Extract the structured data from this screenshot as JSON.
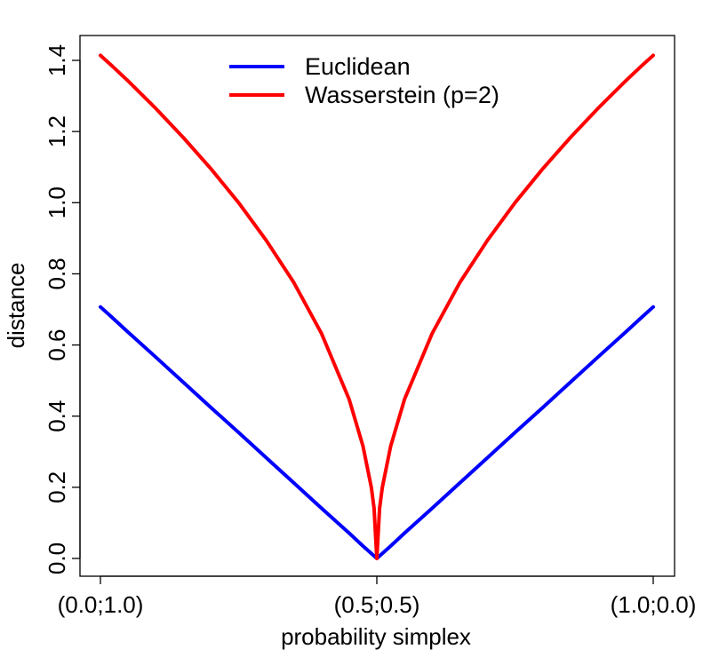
{
  "chart_data": {
    "type": "line",
    "title": "",
    "xlabel": "probability simplex",
    "ylabel": "distance",
    "xlim": [
      0,
      1
    ],
    "ylim": [
      0,
      1.4
    ],
    "x_ticks": [
      {
        "value": 0.0,
        "label": "(0.0;1.0)"
      },
      {
        "value": 0.5,
        "label": "(0.5;0.5)"
      },
      {
        "value": 1.0,
        "label": "(1.0;0.0)"
      }
    ],
    "y_ticks": [
      {
        "value": 0.0,
        "label": "0.0"
      },
      {
        "value": 0.2,
        "label": "0.2"
      },
      {
        "value": 0.4,
        "label": "0.4"
      },
      {
        "value": 0.6,
        "label": "0.6"
      },
      {
        "value": 0.8,
        "label": "0.8"
      },
      {
        "value": 1.0,
        "label": "1.0"
      },
      {
        "value": 1.2,
        "label": "1.2"
      },
      {
        "value": 1.4,
        "label": "1.4"
      }
    ],
    "legend": {
      "position": "top-center"
    },
    "x": [
      0,
      0.02,
      0.05,
      0.1,
      0.15,
      0.2,
      0.25,
      0.3,
      0.35,
      0.4,
      0.45,
      0.475,
      0.49,
      0.495,
      0.5,
      0.505,
      0.51,
      0.525,
      0.55,
      0.6,
      0.65,
      0.7,
      0.75,
      0.8,
      0.85,
      0.9,
      0.95,
      0.98,
      1.0
    ],
    "series": [
      {
        "name": "Euclidean",
        "color": "#0000ff",
        "values": [
          0.707,
          0.679,
          0.636,
          0.566,
          0.495,
          0.424,
          0.354,
          0.283,
          0.212,
          0.141,
          0.071,
          0.035,
          0.014,
          0.007,
          0.0,
          0.007,
          0.014,
          0.035,
          0.071,
          0.141,
          0.212,
          0.283,
          0.354,
          0.424,
          0.495,
          0.566,
          0.636,
          0.679,
          0.707
        ]
      },
      {
        "name": "Wasserstein (p=2)",
        "color": "#ff0000",
        "values": [
          1.414,
          1.386,
          1.342,
          1.265,
          1.183,
          1.095,
          1.0,
          0.894,
          0.775,
          0.632,
          0.447,
          0.316,
          0.2,
          0.141,
          0.0,
          0.141,
          0.2,
          0.316,
          0.447,
          0.632,
          0.775,
          0.894,
          1.0,
          1.095,
          1.183,
          1.265,
          1.342,
          1.386,
          1.414
        ]
      }
    ]
  }
}
